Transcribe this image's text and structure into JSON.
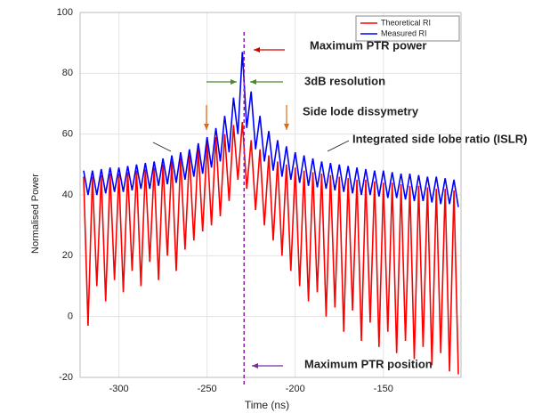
{
  "chart_data": {
    "type": "line",
    "ylabel": "Normalised Power",
    "xlabel": "Time (ns)",
    "x": [
      -320,
      -317.5,
      -315,
      -312.5,
      -310,
      -307.5,
      -305,
      -302.5,
      -300,
      -297.5,
      -295,
      -292.5,
      -290,
      -287.5,
      -285,
      -282.5,
      -280,
      -277.5,
      -275,
      -272.5,
      -270,
      -267.5,
      -265,
      -262.5,
      -260,
      -257.5,
      -255,
      -252.5,
      -250,
      -247.5,
      -245,
      -242.5,
      -240,
      -237.5,
      -235,
      -232.5,
      -230,
      -227.5,
      -225,
      -222.5,
      -220,
      -217.5,
      -215,
      -212.5,
      -210,
      -207.5,
      -205,
      -202.5,
      -200,
      -197.5,
      -195,
      -192.5,
      -190,
      -187.5,
      -185,
      -182.5,
      -180,
      -177.5,
      -175,
      -172.5,
      -170,
      -167.5,
      -165,
      -162.5,
      -160,
      -157.5,
      -155,
      -152.5,
      -150,
      -147.5,
      -145,
      -142.5,
      -140,
      -137.5,
      -135,
      -132.5,
      -130,
      -127.5,
      -125,
      -122.5,
      -120,
      -117.5,
      -115,
      -112.5,
      -110,
      -107.5
    ],
    "series": [
      {
        "name": "Theoretical RI",
        "color": "#ff0000",
        "values": [
          46,
          -3,
          46,
          10,
          46.5,
          5,
          47,
          12,
          47,
          8,
          47.5,
          15,
          48,
          10,
          48.5,
          18,
          49,
          12,
          50,
          20,
          51,
          15,
          52,
          22,
          53,
          25,
          55,
          28,
          57,
          30,
          59,
          33,
          60,
          38,
          63,
          45,
          64,
          42,
          58,
          35,
          55,
          30,
          53,
          25,
          51,
          20,
          50,
          15,
          49,
          10,
          48,
          5,
          47.5,
          8,
          47,
          0,
          46.5,
          3,
          46,
          -5,
          45.5,
          2,
          45,
          -8,
          45,
          -2,
          44.5,
          -10,
          44,
          -5,
          44,
          -12,
          43.5,
          -8,
          43,
          -14,
          43,
          -10,
          42.5,
          -16,
          42,
          -12,
          42,
          -18,
          41.5,
          -19
        ]
      },
      {
        "name": "Measured RI",
        "color": "#0000ff",
        "values": [
          48,
          40,
          48,
          40,
          48.5,
          40.5,
          49,
          41,
          49,
          41,
          49.5,
          41.5,
          50,
          42,
          50.5,
          42,
          51,
          43,
          52,
          43.5,
          53,
          44,
          54,
          45,
          55,
          46,
          57,
          47,
          59,
          49,
          62,
          51,
          66,
          54,
          72,
          60,
          87,
          62,
          74,
          55,
          66,
          51,
          61,
          48,
          58,
          46,
          56,
          45,
          54,
          44,
          53,
          43,
          52,
          42.5,
          51,
          42,
          50.5,
          41.5,
          50,
          41,
          49.5,
          40.5,
          49,
          40,
          48.5,
          40,
          48,
          39.5,
          48,
          39,
          47.5,
          39,
          47,
          38.5,
          47,
          38,
          46.5,
          38,
          46,
          37.5,
          46,
          37,
          45.5,
          37,
          45,
          36
        ]
      }
    ],
    "xlim": [
      -322,
      -106
    ],
    "ylim": [
      -20,
      100
    ],
    "xticks": [
      -300,
      -250,
      -200,
      -150
    ],
    "yticks": [
      -20,
      0,
      20,
      40,
      60,
      80,
      100
    ],
    "grid": true,
    "legend": "upper right",
    "marker_line": {
      "x": -229,
      "color": "#8b1fa8"
    },
    "annotations": [
      {
        "text": "Maximum PTR power",
        "color": "#d00000"
      },
      {
        "text": "3dB resolution",
        "color": "#4a8a2a"
      },
      {
        "text": "Side lode dissymetry",
        "color": "#e06a10"
      },
      {
        "text": "Integrated side lobe ratio (ISLR)",
        "color": "#111111"
      },
      {
        "text": "Maximum PTR position",
        "color": "#7a2a9e"
      }
    ]
  }
}
